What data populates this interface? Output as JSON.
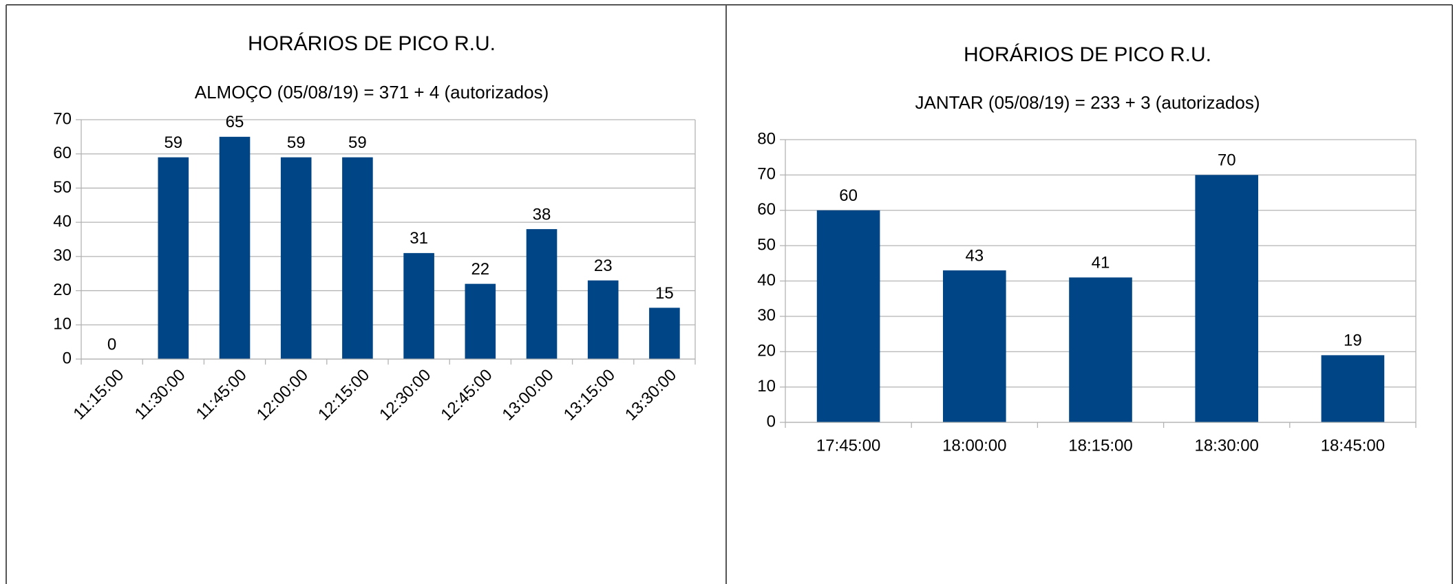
{
  "chart_data": [
    {
      "type": "bar",
      "title": "HORÁRIOS DE PICO R.U.",
      "subtitle": "ALMOÇO (05/08/19) = 371 + 4 (autorizados)",
      "categories": [
        "11:15:00",
        "11:30:00",
        "11:45:00",
        "12:00:00",
        "12:15:00",
        "12:30:00",
        "12:45:00",
        "13:00:00",
        "13:15:00",
        "13:30:00"
      ],
      "values": [
        0,
        59,
        65,
        59,
        59,
        31,
        22,
        38,
        23,
        15
      ],
      "color": "#004586",
      "ylim": [
        0,
        70
      ],
      "yticks": [
        0,
        10,
        20,
        30,
        40,
        50,
        60,
        70
      ],
      "grid": true
    },
    {
      "type": "bar",
      "title": "HORÁRIOS DE PICO R.U.",
      "subtitle": "JANTAR (05/08/19) = 233 + 3 (autorizados)",
      "categories": [
        "17:45:00",
        "18:00:00",
        "18:15:00",
        "18:30:00",
        "18:45:00"
      ],
      "values": [
        60,
        43,
        41,
        70,
        19
      ],
      "color": "#004586",
      "ylim": [
        0,
        80
      ],
      "yticks": [
        0,
        10,
        20,
        30,
        40,
        50,
        60,
        70,
        80
      ],
      "grid": true
    }
  ]
}
